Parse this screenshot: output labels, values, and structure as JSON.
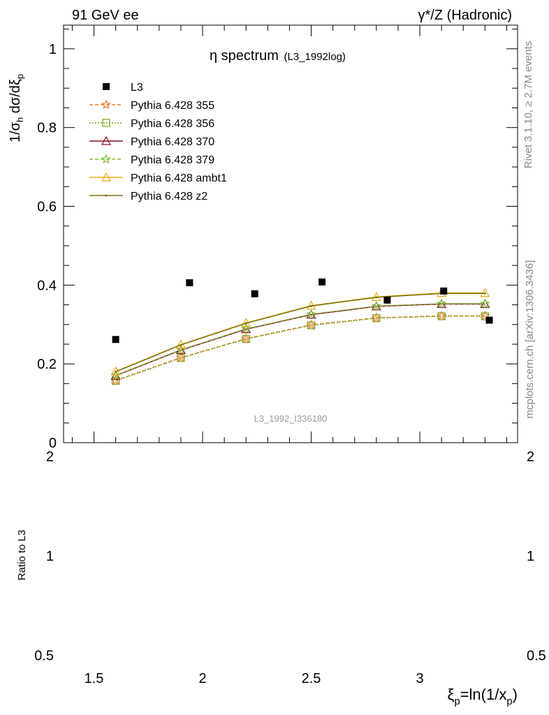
{
  "header": {
    "left": "91 GeV ee",
    "right": "γ*/Z (Hadronic)"
  },
  "side_labels": {
    "rivet": "Rivet 3.1.10, ≥ 2.7M events",
    "mcplots": "mcplots.cern.ch [arXiv:1306.3436]"
  },
  "chart_data": {
    "type": "line",
    "title": "η spectrum",
    "title_note": "(L3_1992log)",
    "watermark": "L3_1992_I336180",
    "ylabel": "1/σ_h dσ/dξ_p",
    "xlabel": "ξ_p=ln(1/x_p)",
    "ratio_ylabel": "Ratio to L3",
    "xlim": [
      1.36,
      3.45
    ],
    "ylim": [
      0,
      1.06
    ],
    "ratio_ylim": [
      0.45,
      2.2
    ],
    "x_ticks": [
      1.5,
      2,
      2.5,
      3
    ],
    "y_ticks": [
      0,
      0.2,
      0.4,
      0.6,
      0.8,
      1
    ],
    "ratio_ticks": [
      0.5,
      1,
      2
    ],
    "legend_position": "top-left",
    "data": {
      "name": "L3",
      "x": [
        1.6,
        1.94,
        2.24,
        2.55,
        2.85,
        3.11,
        3.32
      ],
      "y": [
        0.262,
        0.406,
        0.378,
        0.408,
        0.362,
        0.385,
        0.311
      ]
    },
    "series": [
      {
        "name": "Pythia 6.428 355",
        "color": "#f07828",
        "dash": "5,3",
        "marker": "star",
        "x": [
          1.6,
          1.9,
          2.2,
          2.5,
          2.8,
          3.1,
          3.3
        ],
        "y": [
          0.158,
          0.216,
          0.264,
          0.299,
          0.317,
          0.322,
          0.322
        ]
      },
      {
        "name": "Pythia 6.428 356",
        "color": "#7aa012",
        "dash": "2,2",
        "marker": "square",
        "x": [
          1.6,
          1.9,
          2.2,
          2.5,
          2.8,
          3.1,
          3.3
        ],
        "y": [
          0.157,
          0.215,
          0.263,
          0.298,
          0.316,
          0.321,
          0.321
        ]
      },
      {
        "name": "Pythia 6.428 370",
        "color": "#8c1020",
        "dash": "",
        "marker": "triangle",
        "x": [
          1.6,
          1.9,
          2.2,
          2.5,
          2.8,
          3.1,
          3.3
        ],
        "y": [
          0.17,
          0.235,
          0.288,
          0.325,
          0.346,
          0.352,
          0.352
        ]
      },
      {
        "name": "Pythia 6.428 379",
        "color": "#78c030",
        "dash": "5,3",
        "marker": "star",
        "x": [
          1.6,
          1.9,
          2.2,
          2.5,
          2.8,
          3.1,
          3.3
        ],
        "y": [
          0.171,
          0.236,
          0.289,
          0.326,
          0.347,
          0.353,
          0.353
        ]
      },
      {
        "name": "Pythia 6.428 ambt1",
        "color": "#f0a810",
        "dash": "",
        "marker": "triangle",
        "x": [
          1.6,
          1.9,
          2.2,
          2.5,
          2.8,
          3.1,
          3.3
        ],
        "y": [
          0.181,
          0.249,
          0.304,
          0.348,
          0.37,
          0.38,
          0.38
        ]
      },
      {
        "name": "Pythia 6.428 z2",
        "color": "#7a7410",
        "dash": "",
        "marker": "dot",
        "x": [
          1.6,
          1.9,
          2.2,
          2.5,
          2.8,
          3.1,
          3.3
        ],
        "y": [
          0.18,
          0.248,
          0.303,
          0.347,
          0.369,
          0.379,
          0.379
        ]
      }
    ]
  }
}
